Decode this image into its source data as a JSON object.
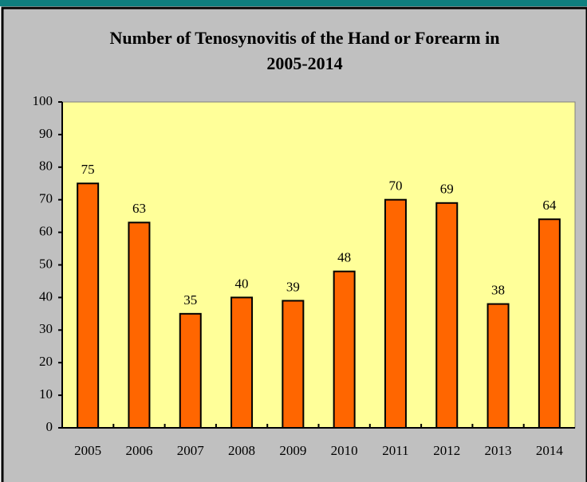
{
  "chart_data": {
    "type": "bar",
    "title": [
      "Number of Tenosynovitis of the Hand or Forearm in",
      "2005-2014"
    ],
    "categories": [
      "2005",
      "2006",
      "2007",
      "2008",
      "2009",
      "2010",
      "2011",
      "2012",
      "2013",
      "2014"
    ],
    "values": [
      75,
      63,
      35,
      40,
      39,
      48,
      70,
      69,
      38,
      64
    ],
    "color": "#ff6600",
    "ylim": [
      0,
      100
    ],
    "yticks": [
      0,
      10,
      20,
      30,
      40,
      50,
      60,
      70,
      80,
      90,
      100
    ],
    "grid": false
  }
}
